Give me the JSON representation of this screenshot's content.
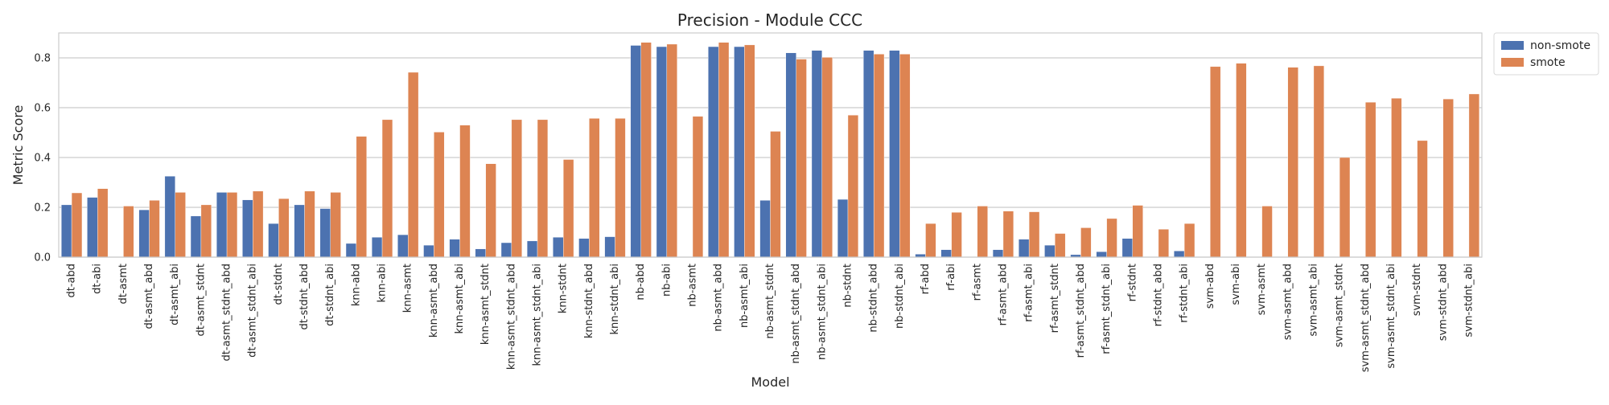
{
  "chart_data": {
    "type": "bar",
    "title": "Precision - Module CCC",
    "xlabel": "Model",
    "ylabel": "Metric Score",
    "ylim": [
      0,
      0.9
    ],
    "yticks": [
      "0.0",
      "0.2",
      "0.4",
      "0.6",
      "0.8"
    ],
    "ytick_values": [
      0,
      0.2,
      0.4,
      0.6,
      0.8
    ],
    "grid": true,
    "legend_position": "outside-top-right",
    "categories": [
      "dt-abd",
      "dt-abi",
      "dt-asmt",
      "dt-asmt_abd",
      "dt-asmt_abi",
      "dt-asmt_stdnt",
      "dt-asmt_stdnt_abd",
      "dt-asmt_stdnt_abi",
      "dt-stdnt",
      "dt-stdnt_abd",
      "dt-stdnt_abi",
      "knn-abd",
      "knn-abi",
      "knn-asmt",
      "knn-asmt_abd",
      "knn-asmt_abi",
      "knn-asmt_stdnt",
      "knn-asmt_stdnt_abd",
      "knn-asmt_stdnt_abi",
      "knn-stdnt",
      "knn-stdnt_abd",
      "knn-stdnt_abi",
      "nb-abd",
      "nb-abi",
      "nb-asmt",
      "nb-asmt_abd",
      "nb-asmt_abi",
      "nb-asmt_stdnt",
      "nb-asmt_stdnt_abd",
      "nb-asmt_stdnt_abi",
      "nb-stdnt",
      "nb-stdnt_abd",
      "nb-stdnt_abi",
      "rf-abd",
      "rf-abi",
      "rf-asmt",
      "rf-asmt_abd",
      "rf-asmt_abi",
      "rf-asmt_stdnt",
      "rf-asmt_stdnt_abd",
      "rf-asmt_stdnt_abi",
      "rf-stdnt",
      "rf-stdnt_abd",
      "rf-stdnt_abi",
      "svm-abd",
      "svm-abi",
      "svm-asmt",
      "svm-asmt_abd",
      "svm-asmt_abi",
      "svm-asmt_stdnt",
      "svm-asmt_stdnt_abd",
      "svm-asmt_stdnt_abi",
      "svm-stdnt",
      "svm-stdnt_abd",
      "svm-stdnt_abi"
    ],
    "series": [
      {
        "name": "non-smote",
        "color": "#4c72b0",
        "values": [
          0.21,
          0.24,
          0,
          0.19,
          0.325,
          0.165,
          0.26,
          0.23,
          0.135,
          0.21,
          0.195,
          0.055,
          0.08,
          0.09,
          0.048,
          0.072,
          0.033,
          0.058,
          0.065,
          0.08,
          0.075,
          0.082,
          0.85,
          0.845,
          0,
          0.845,
          0.845,
          0.228,
          0.82,
          0.83,
          0.232,
          0.83,
          0.83,
          0.012,
          0.03,
          0,
          0.03,
          0.072,
          0.048,
          0.01,
          0.022,
          0.075,
          0,
          0.025,
          0,
          0,
          0,
          0,
          0,
          0,
          0,
          0,
          0,
          0,
          0
        ]
      },
      {
        "name": "smote",
        "color": "#dd8452",
        "values": [
          0.258,
          0.275,
          0.205,
          0.228,
          0.26,
          0.21,
          0.26,
          0.265,
          0.235,
          0.265,
          0.26,
          0.485,
          0.552,
          0.742,
          0.502,
          0.53,
          0.375,
          0.552,
          0.552,
          0.392,
          0.557,
          0.557,
          0.862,
          0.855,
          0.565,
          0.862,
          0.852,
          0.505,
          0.795,
          0.802,
          0.57,
          0.815,
          0.815,
          0.135,
          0.18,
          0.205,
          0.185,
          0.182,
          0.095,
          0.118,
          0.155,
          0.208,
          0.112,
          0.135,
          0.765,
          0.778,
          0.205,
          0.762,
          0.768,
          0.4,
          0.622,
          0.638,
          0.468,
          0.635,
          0.655
        ]
      }
    ]
  }
}
